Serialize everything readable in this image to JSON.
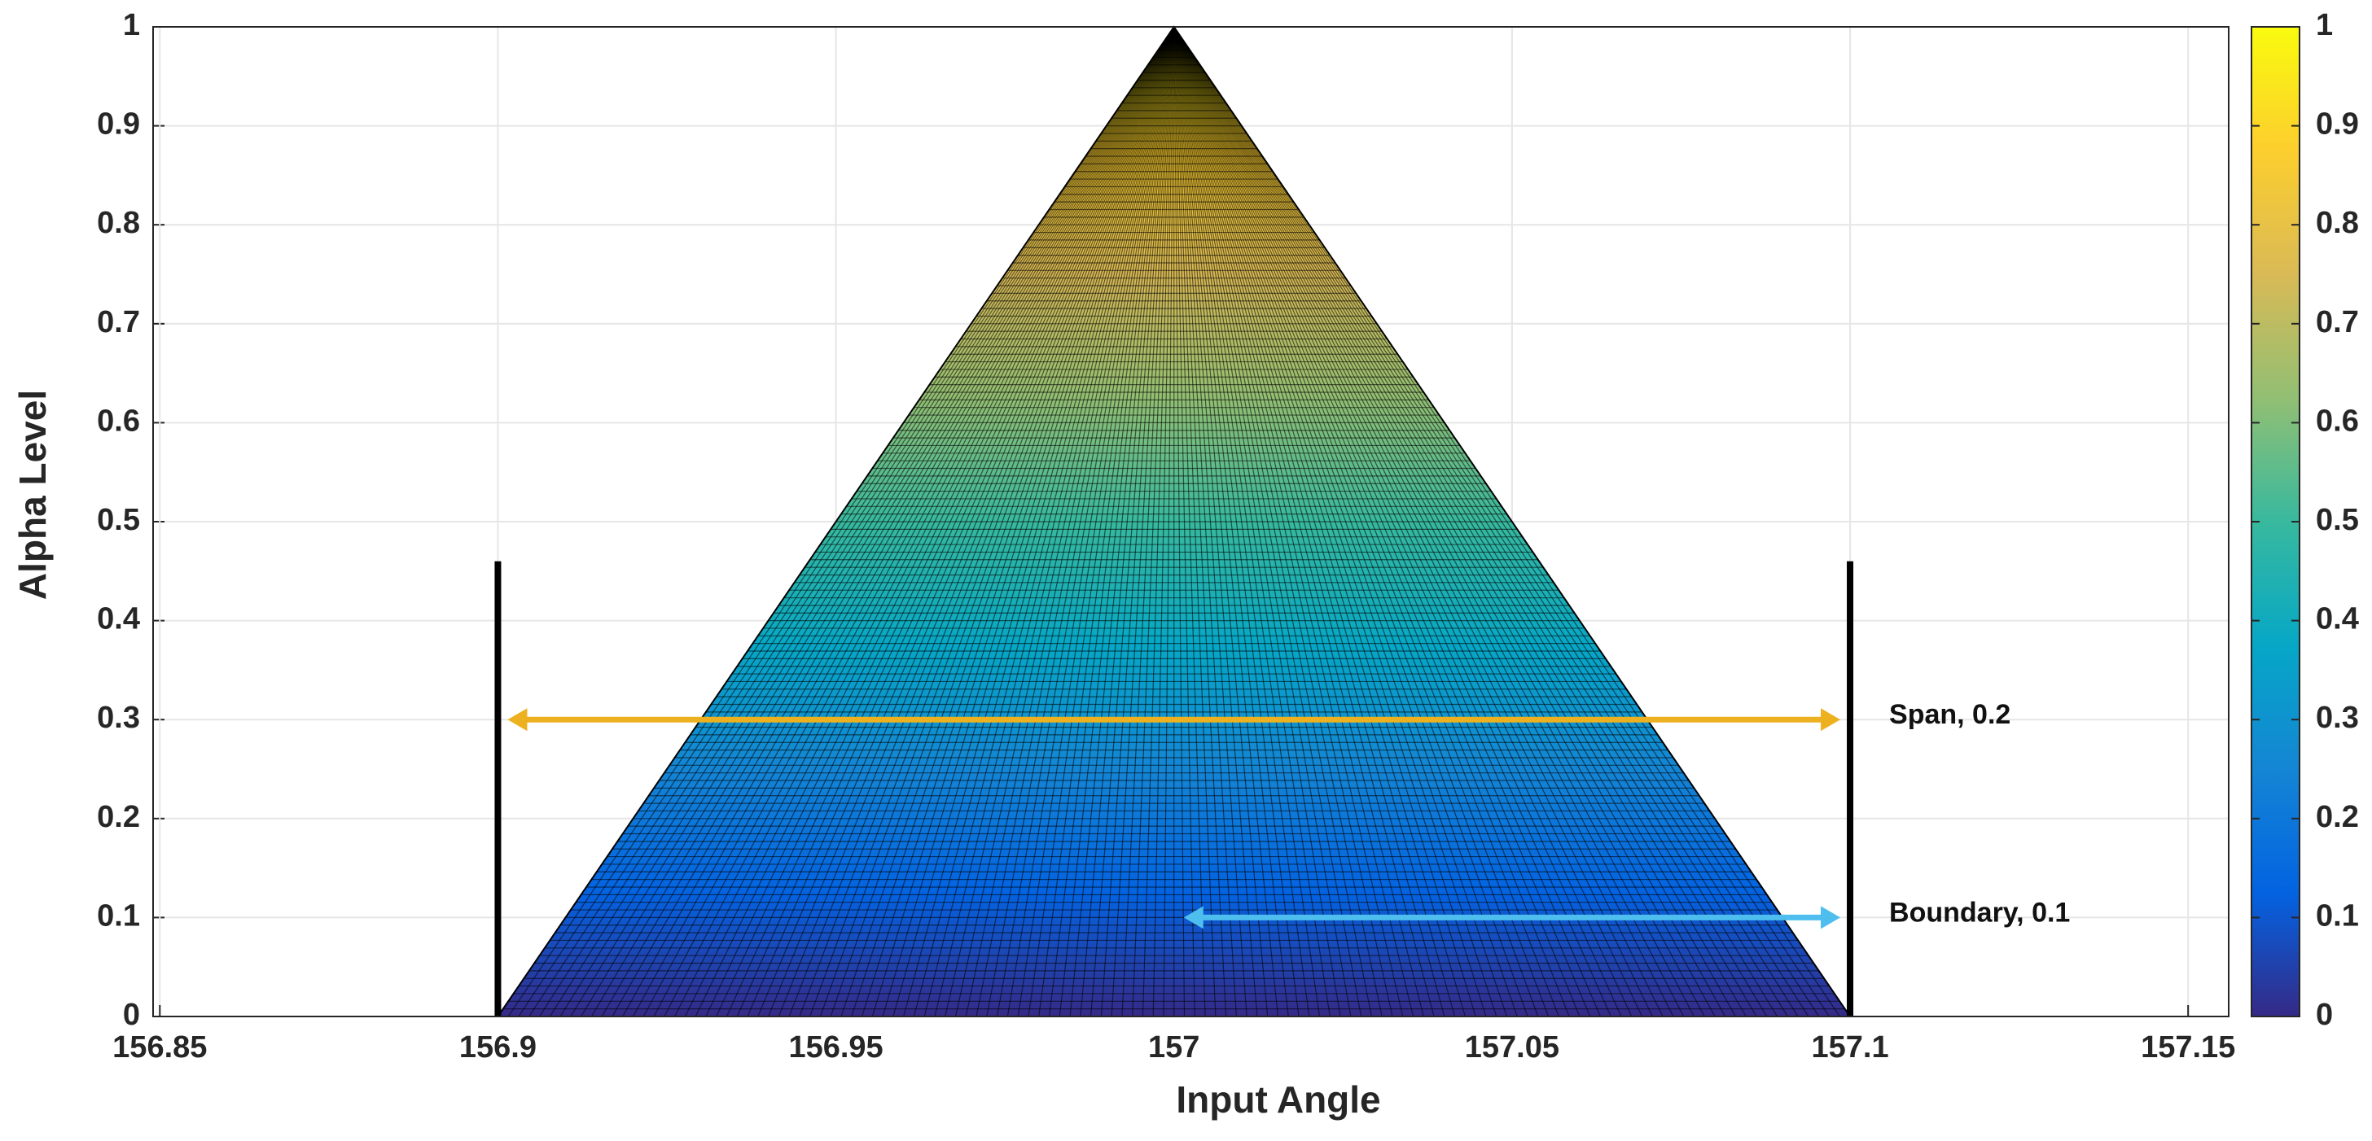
{
  "chart_data": {
    "type": "surface",
    "xlabel": "Input Angle",
    "ylabel": "Alpha Level",
    "x": [
      156.9,
      157,
      157.1
    ],
    "values": [
      0,
      1,
      0
    ],
    "xlim": [
      156.849,
      157.156
    ],
    "ylim": [
      0,
      1
    ],
    "xticks": [
      156.85,
      156.9,
      156.95,
      157,
      157.05,
      157.1,
      157.15
    ],
    "yticks": [
      0,
      0.1,
      0.2,
      0.3,
      0.4,
      0.5,
      0.6,
      0.7,
      0.8,
      0.9,
      1
    ],
    "grid": true,
    "colormap": [
      "#352a87",
      "#0363e1",
      "#1485d4",
      "#06a7c6",
      "#38b99e",
      "#92bf73",
      "#d9ba56",
      "#fcce2e",
      "#f9fb0e"
    ],
    "colorbar": {
      "clim": [
        0,
        1
      ],
      "ticks": [
        0,
        0.1,
        0.2,
        0.3,
        0.4,
        0.5,
        0.6,
        0.7,
        0.8,
        0.9,
        1
      ]
    },
    "bounds": [
      {
        "x": 156.9,
        "height": 0.46
      },
      {
        "x": 157.1,
        "height": 0.46
      }
    ],
    "bound_color": "#000000",
    "arrows": [
      {
        "label": "Span, 0.2",
        "x": [
          156.9,
          157.1
        ],
        "y": 0.3,
        "color": "#edb120"
      },
      {
        "label": "Boundary, 0.1",
        "x": [
          157,
          157.1
        ],
        "y": 0.1,
        "color": "#4dbeee"
      }
    ]
  }
}
